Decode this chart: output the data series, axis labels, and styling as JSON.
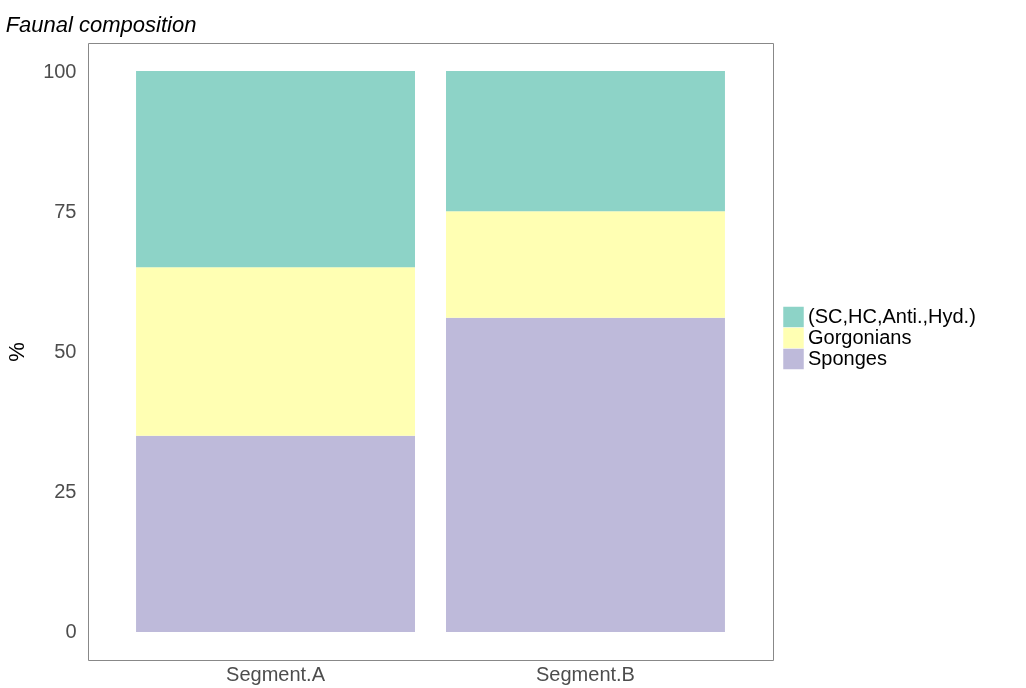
{
  "chart_data": {
    "type": "bar",
    "title": "Faunal composition",
    "ylabel": "%",
    "categories": [
      "Segment.A",
      "Segment.B"
    ],
    "series": [
      {
        "name": "Sponges",
        "color": "#bebada",
        "values": [
          35,
          56
        ]
      },
      {
        "name": "Gorgonians",
        "color": "#ffffb3",
        "values": [
          30,
          19
        ]
      },
      {
        "name": "(SC,HC,Anti.,Hyd.)",
        "color": "#8dd3c7",
        "values": [
          35,
          25
        ]
      }
    ],
    "stacked": true,
    "ylim": [
      -5,
      105
    ],
    "yticks": [
      0,
      25,
      50,
      75,
      100
    ],
    "grid": false,
    "legend": "right"
  }
}
